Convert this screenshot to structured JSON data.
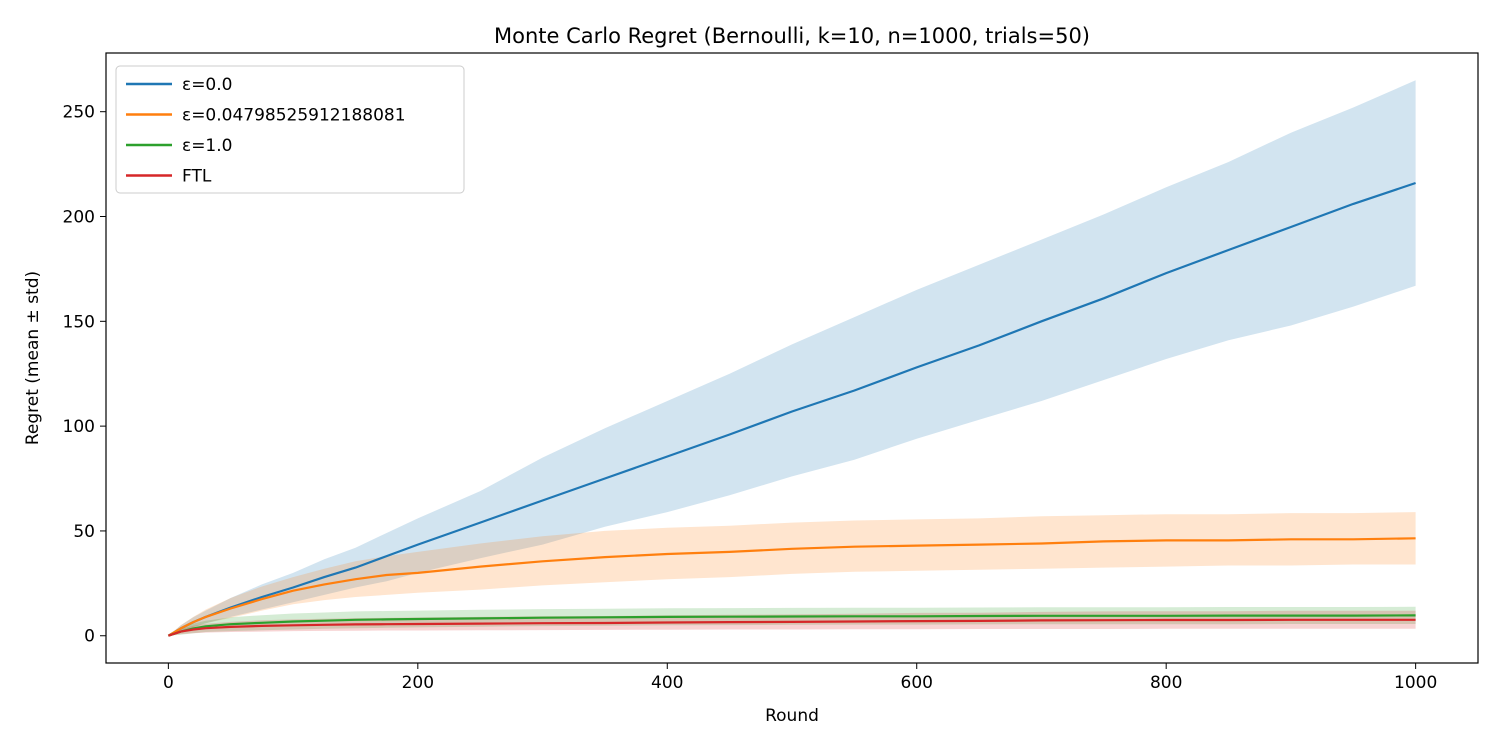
{
  "chart_data": {
    "type": "line",
    "title": "Monte Carlo Regret (Bernoulli, k=10, n=1000, trials=50)",
    "xlabel": "Round",
    "ylabel": "Regret (mean ± std)",
    "xlim": [
      -50,
      1050
    ],
    "ylim": [
      -13,
      278
    ],
    "x_ticks": [
      0,
      200,
      400,
      600,
      800,
      1000
    ],
    "y_ticks": [
      0,
      50,
      100,
      150,
      200,
      250
    ],
    "grid": false,
    "legend_position": "top-left",
    "x": [
      0,
      10,
      20,
      30,
      50,
      75,
      100,
      125,
      150,
      175,
      200,
      250,
      300,
      350,
      400,
      450,
      500,
      550,
      600,
      650,
      700,
      750,
      800,
      850,
      900,
      950,
      1000
    ],
    "series": [
      {
        "name": "ε=0.0",
        "color": "#1f77b4",
        "band_color": "#1f77b4",
        "mean": [
          0,
          3.5,
          6.5,
          9,
          13.5,
          18.5,
          23,
          28,
          32.5,
          38,
          43.5,
          54,
          64.5,
          75,
          85.5,
          96,
          107,
          117,
          128,
          138.5,
          150,
          161,
          173,
          184,
          195,
          206,
          216
        ],
        "lower": [
          0,
          2.2,
          4.2,
          6,
          9,
          12.5,
          16,
          19.5,
          23,
          26,
          30,
          37,
          43.5,
          52,
          59,
          67,
          76,
          84,
          94,
          103,
          112,
          122,
          132,
          141,
          148,
          157,
          167
        ],
        "upper": [
          0,
          5,
          8.8,
          12,
          18,
          24.5,
          30,
          36.5,
          42,
          49,
          56,
          69,
          85,
          99,
          112,
          125,
          139,
          152,
          165,
          177,
          189,
          201,
          214,
          226,
          240,
          252,
          265
        ]
      },
      {
        "name": "ε=0.04798525912188081",
        "color": "#ff7f0e",
        "band_color": "#ff7f0e",
        "mean": [
          0,
          3.5,
          6.5,
          9,
          13,
          17.5,
          21.5,
          24.5,
          27,
          29,
          30,
          33,
          35.5,
          37.5,
          39,
          40,
          41.5,
          42.5,
          43,
          43.5,
          44,
          45,
          45.5,
          45.5,
          46,
          46,
          46.5
        ],
        "lower": [
          0,
          2,
          4,
          6,
          8.5,
          12,
          15,
          17,
          18.5,
          19.5,
          20.5,
          22,
          24,
          25.5,
          27,
          28,
          29.5,
          30.5,
          31,
          31.5,
          32,
          32.5,
          33,
          33.5,
          33.5,
          34,
          34
        ],
        "upper": [
          0,
          5,
          9,
          12.5,
          18,
          23.5,
          28,
          32,
          35.5,
          38,
          40,
          44,
          47.5,
          50,
          51.5,
          52.5,
          54,
          55,
          55.5,
          56,
          57,
          57.5,
          58,
          58,
          58.5,
          58.5,
          59
        ]
      },
      {
        "name": "ε=1.0",
        "color": "#2ca02c",
        "band_color": "#2ca02c",
        "mean": [
          0,
          2,
          3.5,
          4.5,
          5.5,
          6.2,
          6.8,
          7.2,
          7.6,
          7.8,
          8,
          8.3,
          8.6,
          8.8,
          9,
          9.1,
          9.2,
          9.3,
          9.3,
          9.4,
          9.5,
          9.5,
          9.5,
          9.6,
          9.6,
          9.6,
          9.7
        ],
        "lower": [
          0,
          0.5,
          1.2,
          1.8,
          2.2,
          2.6,
          3,
          3.3,
          3.6,
          3.8,
          4,
          4.3,
          4.6,
          4.8,
          5,
          5.1,
          5.2,
          5.3,
          5.3,
          5.4,
          5.5,
          5.5,
          5.5,
          5.5,
          5.6,
          5.6,
          5.6
        ],
        "upper": [
          0,
          3.5,
          5.8,
          7.2,
          8.8,
          9.8,
          10.6,
          11.1,
          11.6,
          11.8,
          12,
          12.4,
          12.7,
          12.9,
          13.1,
          13.2,
          13.3,
          13.4,
          13.4,
          13.5,
          13.6,
          13.6,
          13.6,
          13.7,
          13.7,
          13.7,
          13.8
        ]
      },
      {
        "name": "FTL",
        "color": "#d62728",
        "band_color": "#d62728",
        "mean": [
          0,
          2,
          3,
          3.6,
          4.2,
          4.7,
          5,
          5.2,
          5.4,
          5.5,
          5.6,
          5.8,
          6,
          6.1,
          6.3,
          6.5,
          6.6,
          6.8,
          7,
          7.1,
          7.3,
          7.4,
          7.5,
          7.5,
          7.6,
          7.6,
          7.6
        ],
        "lower": [
          0,
          0.8,
          1.2,
          1.5,
          1.8,
          2,
          2.2,
          2.3,
          2.4,
          2.5,
          2.5,
          2.6,
          2.7,
          2.8,
          2.9,
          3,
          3,
          3.1,
          3.1,
          3.2,
          3.2,
          3.2,
          3.3,
          3.3,
          3.3,
          3.3,
          3.3
        ],
        "upper": [
          0,
          3.2,
          4.8,
          5.7,
          6.6,
          7.4,
          7.8,
          8.1,
          8.4,
          8.5,
          8.7,
          9,
          9.3,
          9.4,
          9.7,
          10,
          10.2,
          10.5,
          10.9,
          11,
          11.4,
          11.6,
          11.7,
          11.7,
          11.9,
          11.9,
          11.9
        ]
      }
    ]
  }
}
